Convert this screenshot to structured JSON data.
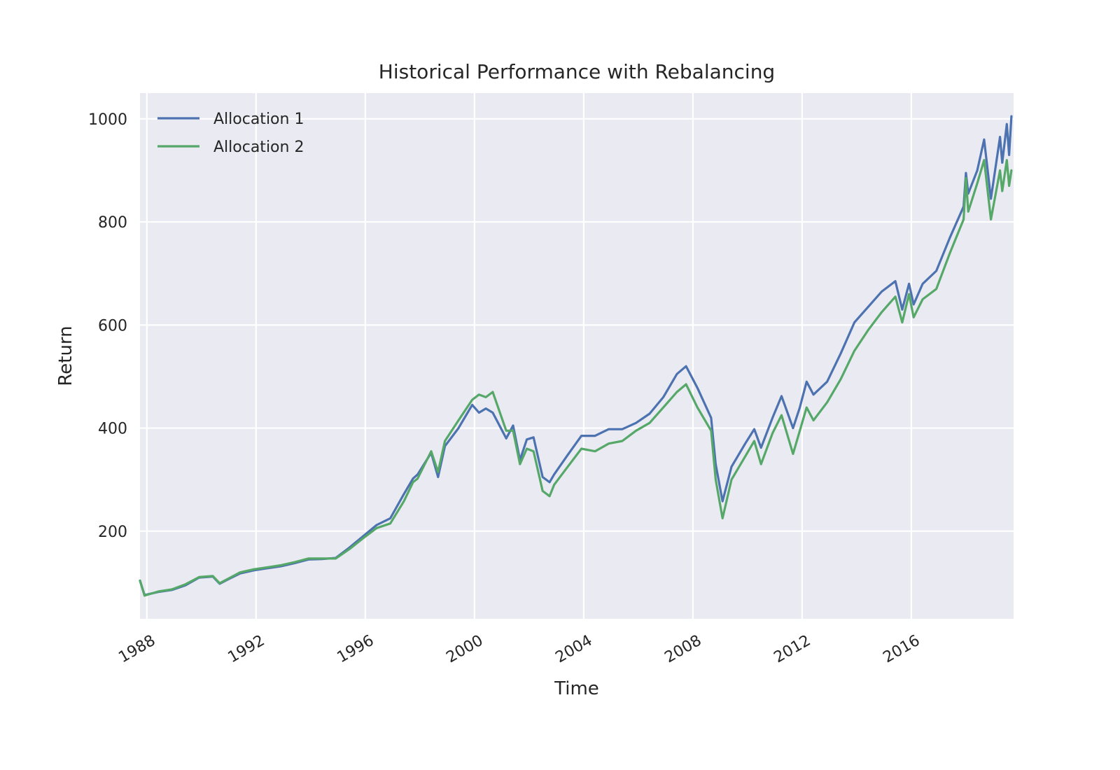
{
  "chart_data": {
    "type": "line",
    "title": "Historical Performance with Rebalancing",
    "xlabel": "Time",
    "ylabel": "Return",
    "xlim": [
      "1987-10-01",
      "2019-09-30"
    ],
    "ylim": [
      30,
      1050
    ],
    "x_ticks": [
      "1988",
      "1992",
      "1996",
      "2000",
      "2004",
      "2008",
      "2012",
      "2016"
    ],
    "y_ticks": [
      200,
      400,
      600,
      800,
      1000
    ],
    "grid": true,
    "legend_position": "top-left",
    "series": [
      {
        "name": "Allocation 1",
        "color": "#4c72b0",
        "points": [
          [
            "1987-10-01",
            104
          ],
          [
            "1987-12-01",
            76
          ],
          [
            "1988-06-01",
            82
          ],
          [
            "1988-12-01",
            86
          ],
          [
            "1989-06-01",
            95
          ],
          [
            "1989-12-01",
            110
          ],
          [
            "1990-06-01",
            112
          ],
          [
            "1990-09-01",
            98
          ],
          [
            "1990-12-01",
            105
          ],
          [
            "1991-06-01",
            118
          ],
          [
            "1991-12-01",
            124
          ],
          [
            "1992-06-01",
            128
          ],
          [
            "1992-12-01",
            132
          ],
          [
            "1993-06-01",
            138
          ],
          [
            "1993-12-01",
            145
          ],
          [
            "1994-06-01",
            146
          ],
          [
            "1994-12-01",
            148
          ],
          [
            "1995-06-01",
            168
          ],
          [
            "1995-12-01",
            190
          ],
          [
            "1996-06-01",
            212
          ],
          [
            "1996-12-01",
            225
          ],
          [
            "1997-06-01",
            272
          ],
          [
            "1997-10-01",
            302
          ],
          [
            "1997-12-01",
            310
          ],
          [
            "1998-06-01",
            352
          ],
          [
            "1998-09-01",
            305
          ],
          [
            "1998-12-01",
            365
          ],
          [
            "1999-06-01",
            400
          ],
          [
            "1999-12-01",
            445
          ],
          [
            "2000-03-01",
            430
          ],
          [
            "2000-06-01",
            438
          ],
          [
            "2000-09-01",
            430
          ],
          [
            "2001-03-01",
            380
          ],
          [
            "2001-06-01",
            405
          ],
          [
            "2001-09-01",
            338
          ],
          [
            "2001-12-01",
            378
          ],
          [
            "2002-03-01",
            382
          ],
          [
            "2002-07-01",
            305
          ],
          [
            "2002-10-01",
            295
          ],
          [
            "2002-12-01",
            310
          ],
          [
            "2003-06-01",
            348
          ],
          [
            "2003-12-01",
            385
          ],
          [
            "2004-06-01",
            385
          ],
          [
            "2004-12-01",
            398
          ],
          [
            "2005-06-01",
            398
          ],
          [
            "2005-12-01",
            410
          ],
          [
            "2006-06-01",
            428
          ],
          [
            "2006-12-01",
            460
          ],
          [
            "2007-06-01",
            505
          ],
          [
            "2007-10-01",
            520
          ],
          [
            "2008-03-01",
            478
          ],
          [
            "2008-09-01",
            420
          ],
          [
            "2008-11-01",
            330
          ],
          [
            "2009-02-01",
            258
          ],
          [
            "2009-06-01",
            325
          ],
          [
            "2009-12-01",
            370
          ],
          [
            "2010-04-01",
            398
          ],
          [
            "2010-07-01",
            362
          ],
          [
            "2010-12-01",
            420
          ],
          [
            "2011-04-01",
            462
          ],
          [
            "2011-09-01",
            400
          ],
          [
            "2011-12-01",
            440
          ],
          [
            "2012-03-01",
            490
          ],
          [
            "2012-06-01",
            465
          ],
          [
            "2012-12-01",
            490
          ],
          [
            "2013-06-01",
            545
          ],
          [
            "2013-12-01",
            605
          ],
          [
            "2014-06-01",
            635
          ],
          [
            "2014-12-01",
            665
          ],
          [
            "2015-06-01",
            685
          ],
          [
            "2015-09-01",
            630
          ],
          [
            "2015-12-01",
            680
          ],
          [
            "2016-02-01",
            640
          ],
          [
            "2016-06-01",
            680
          ],
          [
            "2016-12-01",
            705
          ],
          [
            "2017-06-01",
            770
          ],
          [
            "2017-12-01",
            830
          ],
          [
            "2018-01-01",
            895
          ],
          [
            "2018-02-01",
            855
          ],
          [
            "2018-06-01",
            900
          ],
          [
            "2018-09-01",
            960
          ],
          [
            "2018-12-01",
            845
          ],
          [
            "2019-04-01",
            965
          ],
          [
            "2019-05-01",
            915
          ],
          [
            "2019-07-01",
            990
          ],
          [
            "2019-08-01",
            930
          ],
          [
            "2019-09-01",
            1005
          ]
        ]
      },
      {
        "name": "Allocation 2",
        "color": "#55a868",
        "points": [
          [
            "1987-10-01",
            104
          ],
          [
            "1987-12-01",
            75
          ],
          [
            "1988-06-01",
            83
          ],
          [
            "1988-12-01",
            87
          ],
          [
            "1989-06-01",
            97
          ],
          [
            "1989-12-01",
            111
          ],
          [
            "1990-06-01",
            113
          ],
          [
            "1990-09-01",
            99
          ],
          [
            "1990-12-01",
            106
          ],
          [
            "1991-06-01",
            120
          ],
          [
            "1991-12-01",
            126
          ],
          [
            "1992-06-01",
            130
          ],
          [
            "1992-12-01",
            134
          ],
          [
            "1993-06-01",
            140
          ],
          [
            "1993-12-01",
            147
          ],
          [
            "1994-06-01",
            147
          ],
          [
            "1994-12-01",
            147
          ],
          [
            "1995-06-01",
            165
          ],
          [
            "1995-12-01",
            186
          ],
          [
            "1996-06-01",
            206
          ],
          [
            "1996-12-01",
            215
          ],
          [
            "1997-06-01",
            258
          ],
          [
            "1997-10-01",
            295
          ],
          [
            "1997-12-01",
            302
          ],
          [
            "1998-06-01",
            355
          ],
          [
            "1998-09-01",
            315
          ],
          [
            "1998-12-01",
            375
          ],
          [
            "1999-06-01",
            415
          ],
          [
            "1999-12-01",
            455
          ],
          [
            "2000-03-01",
            465
          ],
          [
            "2000-06-01",
            460
          ],
          [
            "2000-09-01",
            470
          ],
          [
            "2001-03-01",
            395
          ],
          [
            "2001-06-01",
            395
          ],
          [
            "2001-09-01",
            330
          ],
          [
            "2001-12-01",
            360
          ],
          [
            "2002-03-01",
            355
          ],
          [
            "2002-07-01",
            278
          ],
          [
            "2002-10-01",
            268
          ],
          [
            "2002-12-01",
            290
          ],
          [
            "2003-06-01",
            325
          ],
          [
            "2003-12-01",
            360
          ],
          [
            "2004-06-01",
            355
          ],
          [
            "2004-12-01",
            370
          ],
          [
            "2005-06-01",
            375
          ],
          [
            "2005-12-01",
            395
          ],
          [
            "2006-06-01",
            410
          ],
          [
            "2006-12-01",
            440
          ],
          [
            "2007-06-01",
            470
          ],
          [
            "2007-10-01",
            485
          ],
          [
            "2008-03-01",
            440
          ],
          [
            "2008-09-01",
            395
          ],
          [
            "2008-11-01",
            300
          ],
          [
            "2009-02-01",
            225
          ],
          [
            "2009-06-01",
            300
          ],
          [
            "2009-12-01",
            345
          ],
          [
            "2010-04-01",
            375
          ],
          [
            "2010-07-01",
            330
          ],
          [
            "2010-12-01",
            390
          ],
          [
            "2011-04-01",
            425
          ],
          [
            "2011-09-01",
            350
          ],
          [
            "2011-12-01",
            395
          ],
          [
            "2012-03-01",
            440
          ],
          [
            "2012-06-01",
            415
          ],
          [
            "2012-12-01",
            450
          ],
          [
            "2013-06-01",
            495
          ],
          [
            "2013-12-01",
            550
          ],
          [
            "2014-06-01",
            590
          ],
          [
            "2014-12-01",
            625
          ],
          [
            "2015-06-01",
            655
          ],
          [
            "2015-09-01",
            605
          ],
          [
            "2015-12-01",
            660
          ],
          [
            "2016-02-01",
            615
          ],
          [
            "2016-06-01",
            650
          ],
          [
            "2016-12-01",
            670
          ],
          [
            "2017-06-01",
            740
          ],
          [
            "2017-12-01",
            805
          ],
          [
            "2018-01-01",
            885
          ],
          [
            "2018-02-01",
            820
          ],
          [
            "2018-06-01",
            875
          ],
          [
            "2018-09-01",
            920
          ],
          [
            "2018-12-01",
            805
          ],
          [
            "2019-04-01",
            900
          ],
          [
            "2019-05-01",
            860
          ],
          [
            "2019-07-01",
            920
          ],
          [
            "2019-08-01",
            870
          ],
          [
            "2019-09-01",
            900
          ]
        ]
      }
    ]
  }
}
